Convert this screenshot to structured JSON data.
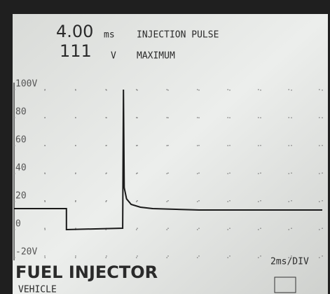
{
  "readouts": {
    "time_value": "4.00",
    "time_unit": "ms",
    "time_label": "INJECTION PULSE",
    "volt_value": "111",
    "volt_unit": "V",
    "volt_label": "MAXIMUM"
  },
  "chart_data": {
    "type": "line",
    "x": [
      0,
      3.4,
      3.4,
      7.05,
      7.1,
      7.15,
      7.3,
      7.6,
      8.2,
      9,
      12,
      16,
      20
    ],
    "values": [
      15,
      15,
      0,
      1,
      100,
      30,
      22,
      18,
      16,
      15,
      14,
      14,
      14
    ],
    "color": "#1a1a1a",
    "xlim": [
      0,
      20
    ],
    "ylim": [
      -20,
      100
    ],
    "yticks": [
      {
        "value": -20,
        "label": "-20V"
      },
      0,
      20,
      40,
      60,
      80,
      {
        "value": 100,
        "label": "100V"
      }
    ],
    "grid": true,
    "scale_label": "2ms/DIV"
  },
  "footer": {
    "channel": "FUEL INJECTOR",
    "menu": "VEHICLE"
  }
}
